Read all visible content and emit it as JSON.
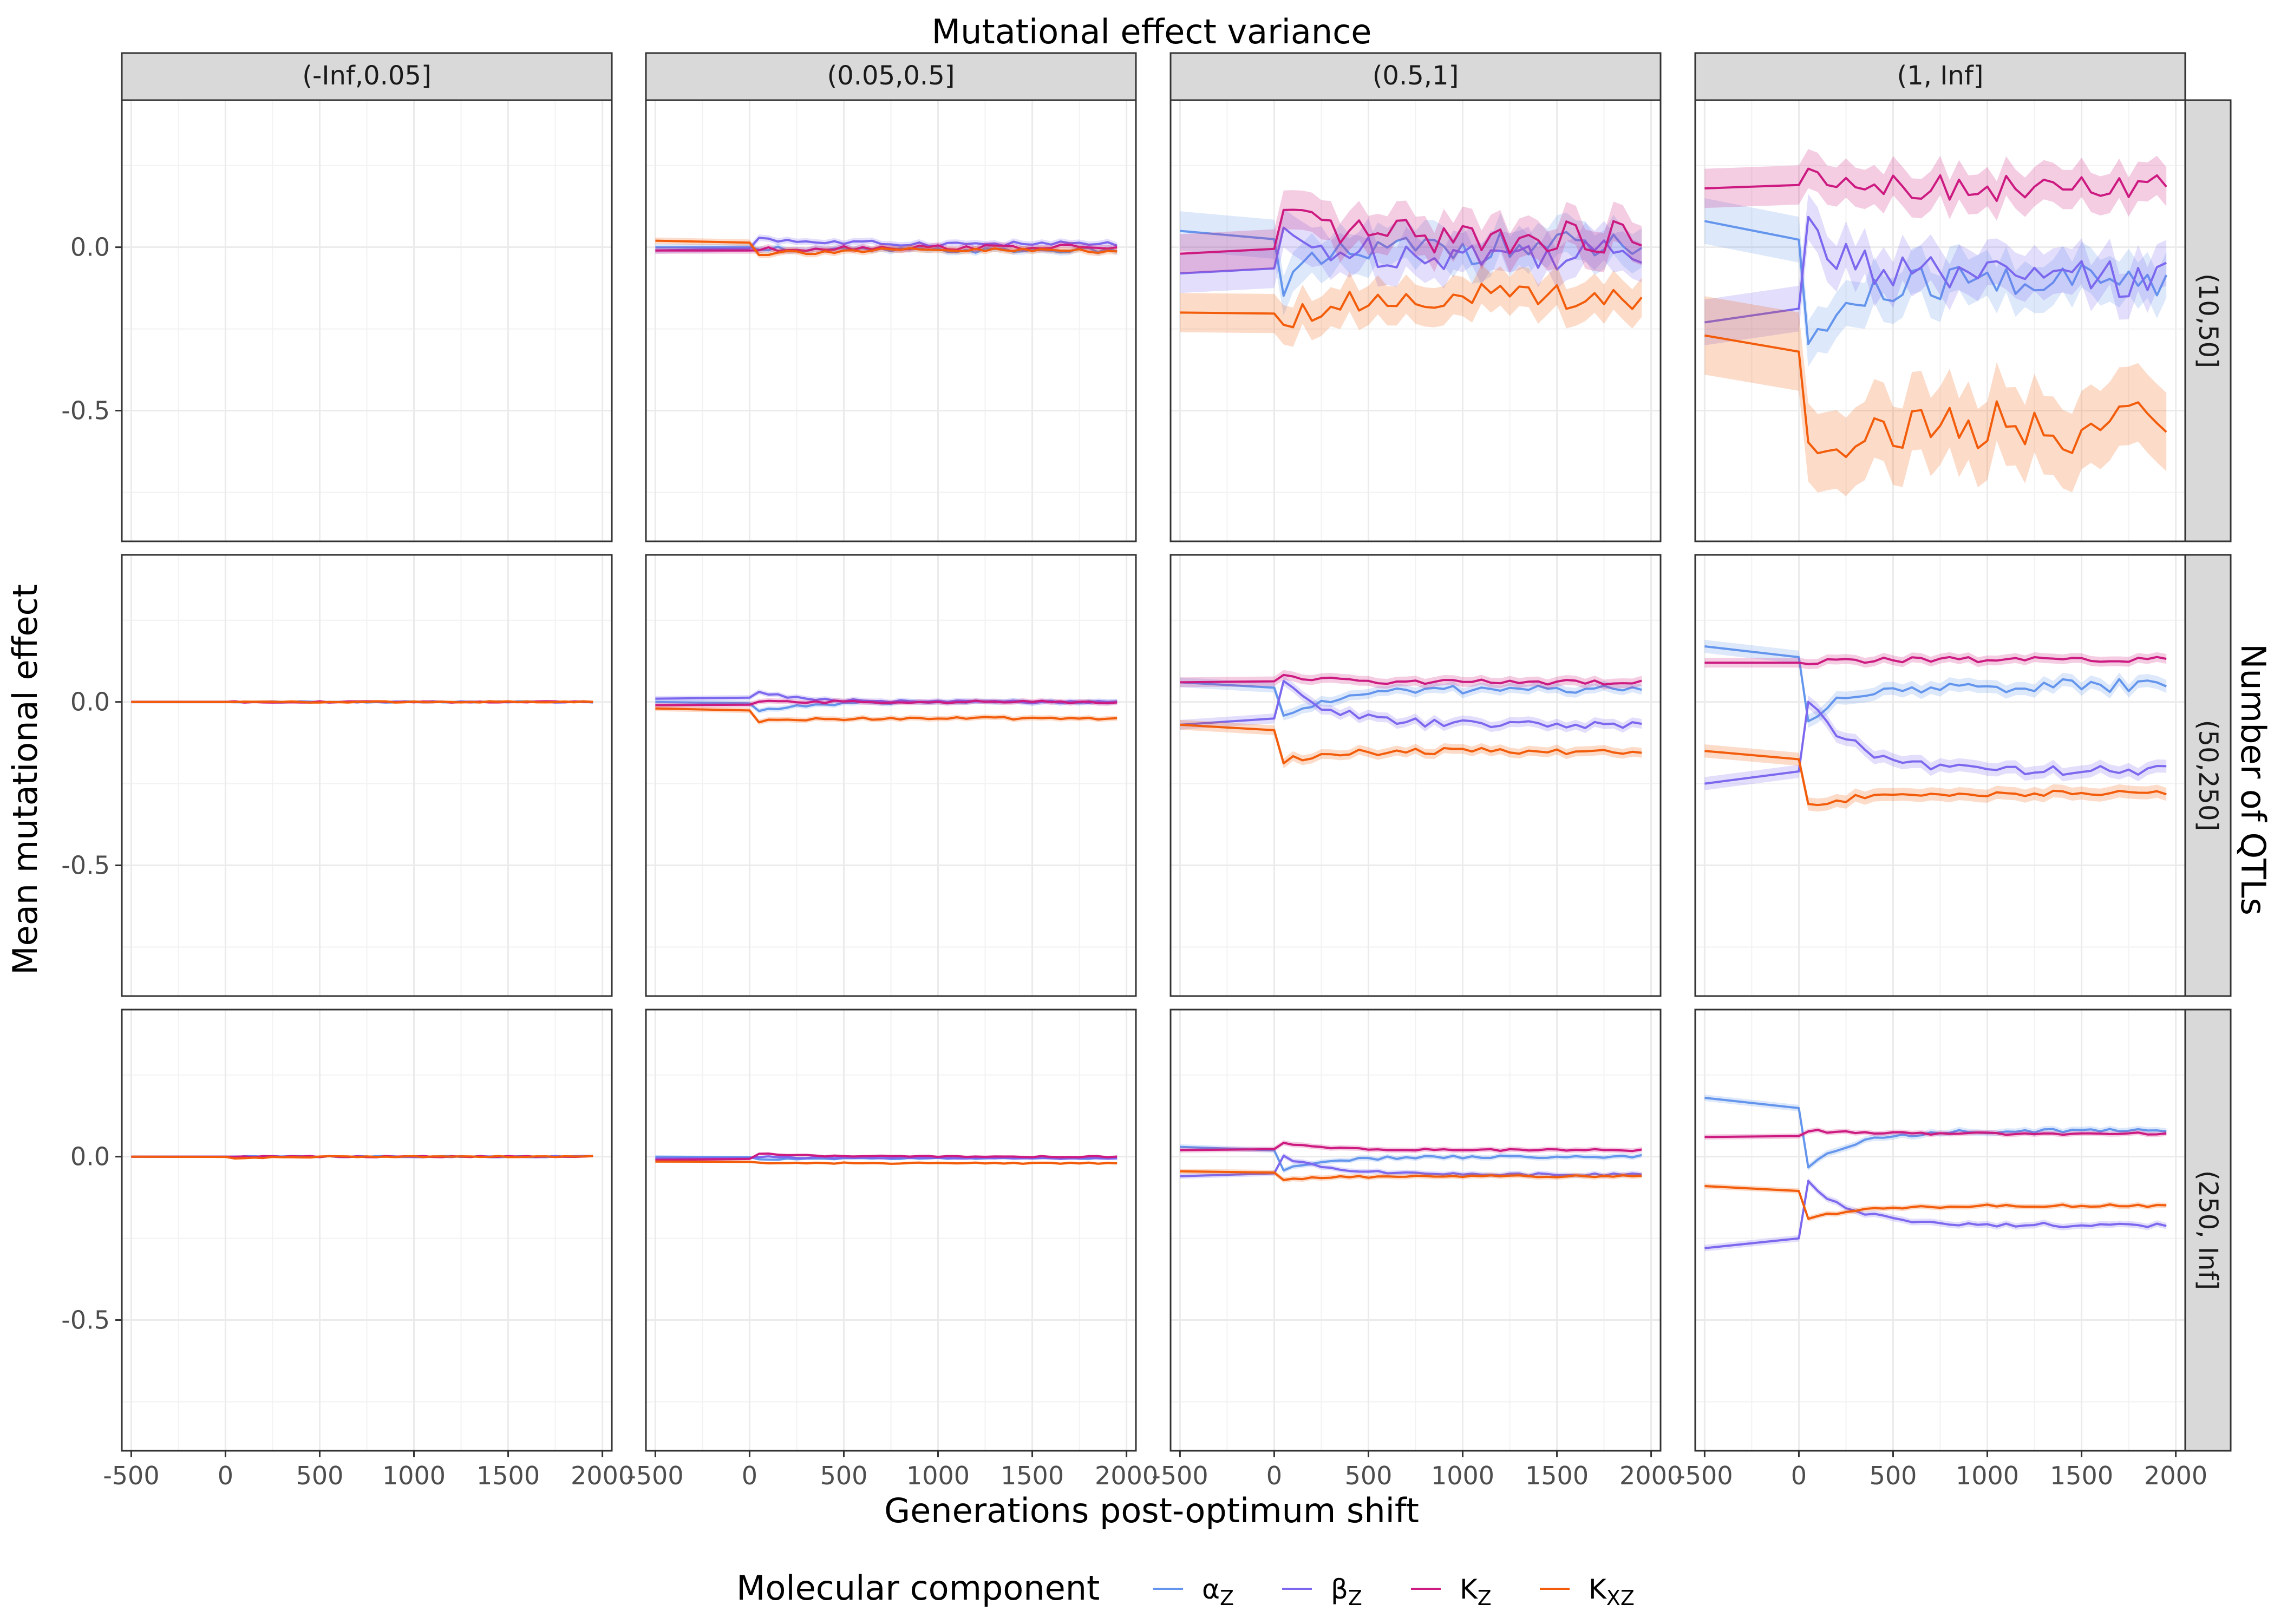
{
  "chart_data": {
    "type": "line",
    "title": "Mutational effect variance",
    "xlabel": "Generations post-optimum shift",
    "ylabel": "Mean mutational effect",
    "row_facet_title": "Number of QTLs",
    "col_facets": [
      "(-Inf,0.05]",
      "(0.05,0.5]",
      "(0.5,1]",
      "(1, Inf]"
    ],
    "row_facets": [
      "(10,50]",
      "(50,250]",
      "(250, Inf]"
    ],
    "xlim": [
      -550,
      2050
    ],
    "ylim": [
      -0.9,
      0.45
    ],
    "x_ticks": [
      -500,
      0,
      500,
      1000,
      1500,
      2000
    ],
    "x_tick_labels": [
      "-500",
      "0",
      "500",
      "1000",
      "1500",
      "2000"
    ],
    "y_ticks": [
      0.0,
      -0.5
    ],
    "y_tick_labels": [
      "0.0",
      "-0.5"
    ],
    "grid": true,
    "legend": {
      "title": "Molecular component",
      "position": "bottom",
      "items": [
        {
          "key": "alpha",
          "base": "α",
          "sub": "Z",
          "color": "#6495ED"
        },
        {
          "key": "beta",
          "base": "β",
          "sub": "Z",
          "color": "#7B68EE"
        },
        {
          "key": "KZ",
          "base": "K",
          "sub": "Z",
          "color": "#CC1A80"
        },
        {
          "key": "KXZ",
          "base": "K",
          "sub": "XZ",
          "color": "#F25C0A"
        }
      ]
    },
    "panels": [
      {
        "row": 0,
        "col": 1,
        "series": [
          {
            "key": "alpha",
            "pre": 0.0,
            "post0": 0.0,
            "post": -0.01,
            "band": 0.01,
            "noise": 0.008
          },
          {
            "key": "beta",
            "pre": -0.01,
            "post0": 0.03,
            "post": 0.01,
            "band": 0.01,
            "noise": 0.008
          },
          {
            "key": "KZ",
            "pre": -0.01,
            "post0": -0.01,
            "post": 0.0,
            "band": 0.01,
            "noise": 0.008
          },
          {
            "key": "KXZ",
            "pre": 0.02,
            "post0": -0.02,
            "post": -0.01,
            "band": 0.01,
            "noise": 0.008
          }
        ]
      },
      {
        "row": 0,
        "col": 2,
        "series": [
          {
            "key": "alpha",
            "pre": 0.05,
            "post0": -0.12,
            "post": 0.0,
            "band": 0.06,
            "noise": 0.05
          },
          {
            "key": "beta",
            "pre": -0.08,
            "post0": 0.02,
            "post": -0.02,
            "band": 0.06,
            "noise": 0.05
          },
          {
            "key": "KZ",
            "pre": -0.02,
            "post0": 0.08,
            "post": 0.03,
            "band": 0.06,
            "noise": 0.05
          },
          {
            "key": "KXZ",
            "pre": -0.2,
            "post0": -0.22,
            "post": -0.15,
            "band": 0.06,
            "noise": 0.04
          }
        ]
      },
      {
        "row": 0,
        "col": 3,
        "series": [
          {
            "key": "alpha",
            "pre": 0.08,
            "post0": -0.3,
            "post": -0.1,
            "band": 0.07,
            "noise": 0.06
          },
          {
            "key": "beta",
            "pre": -0.23,
            "post0": 0.05,
            "post": -0.1,
            "band": 0.07,
            "noise": 0.06
          },
          {
            "key": "KZ",
            "pre": 0.18,
            "post0": 0.25,
            "post": 0.18,
            "band": 0.06,
            "noise": 0.04
          },
          {
            "key": "KXZ",
            "pre": -0.27,
            "post0": -0.6,
            "post": -0.55,
            "band": 0.12,
            "noise": 0.08
          }
        ]
      },
      {
        "row": 1,
        "col": 0,
        "series": [
          {
            "key": "alpha",
            "pre": 0.0,
            "post0": 0.0,
            "post": 0.0,
            "band": 0.004,
            "noise": 0.002
          },
          {
            "key": "beta",
            "pre": 0.0,
            "post0": 0.0,
            "post": 0.0,
            "band": 0.004,
            "noise": 0.002
          },
          {
            "key": "KZ",
            "pre": 0.0,
            "post0": 0.0,
            "post": 0.0,
            "band": 0.004,
            "noise": 0.002
          },
          {
            "key": "KXZ",
            "pre": 0.0,
            "post0": 0.0,
            "post": 0.0,
            "band": 0.004,
            "noise": 0.002
          }
        ]
      },
      {
        "row": 1,
        "col": 1,
        "series": [
          {
            "key": "alpha",
            "pre": 0.0,
            "post0": -0.03,
            "post": 0.0,
            "band": 0.008,
            "noise": 0.004
          },
          {
            "key": "beta",
            "pre": 0.01,
            "post0": 0.03,
            "post": 0.0,
            "band": 0.008,
            "noise": 0.004
          },
          {
            "key": "KZ",
            "pre": -0.01,
            "post0": 0.0,
            "post": 0.0,
            "band": 0.008,
            "noise": 0.004
          },
          {
            "key": "KXZ",
            "pre": -0.02,
            "post0": -0.06,
            "post": -0.05,
            "band": 0.008,
            "noise": 0.004
          }
        ]
      },
      {
        "row": 1,
        "col": 2,
        "series": [
          {
            "key": "alpha",
            "pre": 0.06,
            "post0": -0.05,
            "post": 0.04,
            "band": 0.015,
            "noise": 0.012
          },
          {
            "key": "beta",
            "pre": -0.07,
            "post0": 0.06,
            "post": -0.07,
            "band": 0.015,
            "noise": 0.012
          },
          {
            "key": "KZ",
            "pre": 0.06,
            "post0": 0.08,
            "post": 0.06,
            "band": 0.015,
            "noise": 0.008
          },
          {
            "key": "KXZ",
            "pre": -0.07,
            "post0": -0.18,
            "post": -0.15,
            "band": 0.015,
            "noise": 0.01
          }
        ]
      },
      {
        "row": 1,
        "col": 3,
        "series": [
          {
            "key": "alpha",
            "pre": 0.17,
            "post0": -0.05,
            "post": 0.05,
            "band": 0.02,
            "noise": 0.02
          },
          {
            "key": "beta",
            "pre": -0.25,
            "post0": 0.0,
            "post": -0.21,
            "band": 0.02,
            "noise": 0.015
          },
          {
            "key": "KZ",
            "pre": 0.12,
            "post0": 0.12,
            "post": 0.13,
            "band": 0.015,
            "noise": 0.008
          },
          {
            "key": "KXZ",
            "pre": -0.15,
            "post0": -0.32,
            "post": -0.28,
            "band": 0.02,
            "noise": 0.01
          }
        ]
      },
      {
        "row": 2,
        "col": 0,
        "series": [
          {
            "key": "alpha",
            "pre": 0.0,
            "post0": 0.0,
            "post": 0.0,
            "band": 0.003,
            "noise": 0.002
          },
          {
            "key": "beta",
            "pre": 0.0,
            "post0": 0.0,
            "post": 0.0,
            "band": 0.003,
            "noise": 0.002
          },
          {
            "key": "KZ",
            "pre": 0.0,
            "post0": 0.0,
            "post": 0.0,
            "band": 0.003,
            "noise": 0.002
          },
          {
            "key": "KXZ",
            "pre": 0.0,
            "post0": -0.005,
            "post": 0.0,
            "band": 0.003,
            "noise": 0.002
          }
        ]
      },
      {
        "row": 2,
        "col": 1,
        "series": [
          {
            "key": "alpha",
            "pre": 0.0,
            "post0": -0.01,
            "post": -0.005,
            "band": 0.004,
            "noise": 0.002
          },
          {
            "key": "beta",
            "pre": -0.005,
            "post0": 0.0,
            "post": -0.005,
            "band": 0.004,
            "noise": 0.002
          },
          {
            "key": "KZ",
            "pre": -0.01,
            "post0": 0.01,
            "post": 0.0,
            "band": 0.004,
            "noise": 0.002
          },
          {
            "key": "KXZ",
            "pre": -0.015,
            "post0": -0.02,
            "post": -0.02,
            "band": 0.004,
            "noise": 0.002
          }
        ]
      },
      {
        "row": 2,
        "col": 2,
        "series": [
          {
            "key": "alpha",
            "pre": 0.03,
            "post0": -0.04,
            "post": 0.0,
            "band": 0.008,
            "noise": 0.005
          },
          {
            "key": "beta",
            "pre": -0.06,
            "post0": 0.0,
            "post": -0.055,
            "band": 0.008,
            "noise": 0.004
          },
          {
            "key": "KZ",
            "pre": 0.02,
            "post0": 0.04,
            "post": 0.02,
            "band": 0.008,
            "noise": 0.003
          },
          {
            "key": "KXZ",
            "pre": -0.045,
            "post0": -0.07,
            "post": -0.06,
            "band": 0.008,
            "noise": 0.003
          }
        ]
      },
      {
        "row": 2,
        "col": 3,
        "series": [
          {
            "key": "alpha",
            "pre": 0.18,
            "post0": -0.03,
            "post": 0.08,
            "band": 0.01,
            "noise": 0.006
          },
          {
            "key": "beta",
            "pre": -0.28,
            "post0": -0.08,
            "post": -0.21,
            "band": 0.01,
            "noise": 0.007
          },
          {
            "key": "KZ",
            "pre": 0.06,
            "post0": 0.08,
            "post": 0.07,
            "band": 0.008,
            "noise": 0.004
          },
          {
            "key": "KXZ",
            "pre": -0.09,
            "post0": -0.19,
            "post": -0.15,
            "band": 0.008,
            "noise": 0.004
          }
        ]
      }
    ]
  }
}
